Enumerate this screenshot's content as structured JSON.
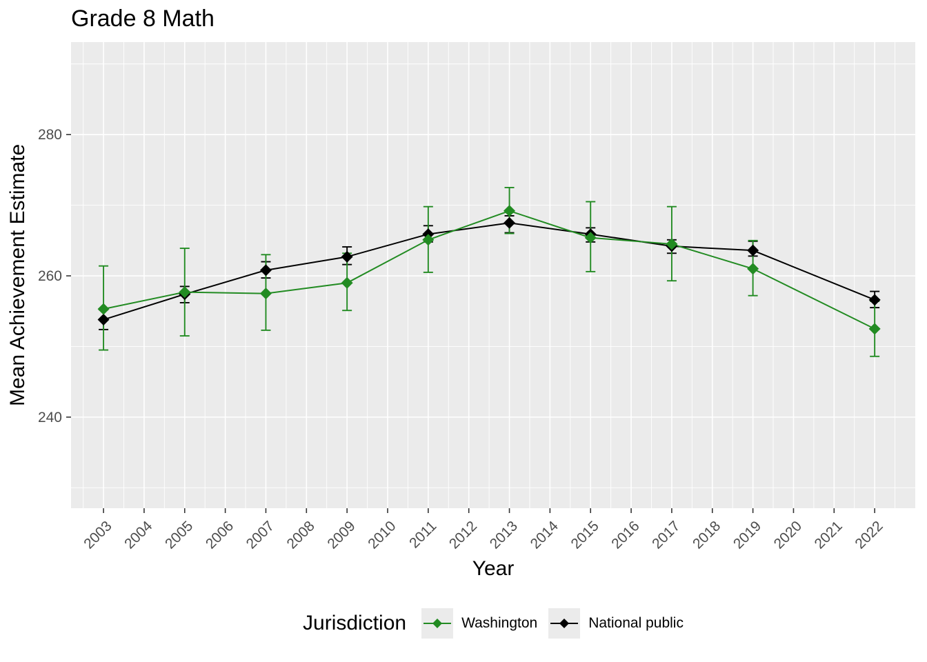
{
  "chart_data": {
    "type": "line",
    "title": "Grade 8 Math",
    "xlabel": "Year",
    "ylabel": "Mean Achievement Estimate",
    "legend_title": "Jurisdiction",
    "legend_position": "bottom",
    "grid": true,
    "x_ticks": [
      2003,
      2004,
      2005,
      2006,
      2007,
      2008,
      2009,
      2010,
      2011,
      2012,
      2013,
      2014,
      2015,
      2016,
      2017,
      2018,
      2019,
      2020,
      2021,
      2022
    ],
    "y_ticks": [
      240,
      260,
      280
    ],
    "y_minor_ticks": [
      230,
      250,
      270,
      290
    ],
    "x_domain": [
      2002.2,
      2023.0
    ],
    "y_domain": [
      227.1,
      293.1
    ],
    "x": [
      2003,
      2005,
      2007,
      2009,
      2011,
      2013,
      2015,
      2017,
      2019,
      2022
    ],
    "series": [
      {
        "name": "Washington",
        "color": "#228B22",
        "values": [
          255.3,
          257.7,
          257.5,
          259.0,
          265.1,
          269.2,
          265.4,
          264.5,
          261.0,
          252.5
        ],
        "ci_low": [
          249.5,
          251.5,
          252.3,
          255.1,
          260.5,
          266.0,
          260.6,
          259.3,
          257.2,
          248.6
        ],
        "ci_high": [
          261.4,
          263.9,
          263.0,
          263.2,
          269.8,
          272.5,
          270.5,
          269.8,
          265.0,
          256.4
        ]
      },
      {
        "name": "National public",
        "color": "#000000",
        "values": [
          253.8,
          257.4,
          260.8,
          262.7,
          265.9,
          267.5,
          265.9,
          264.2,
          263.6,
          256.6
        ],
        "ci_low": [
          252.4,
          256.2,
          259.7,
          261.6,
          264.8,
          266.1,
          264.8,
          263.2,
          262.8,
          255.5
        ],
        "ci_high": [
          255.2,
          258.5,
          262.0,
          264.1,
          267.1,
          268.5,
          266.8,
          265.1,
          264.9,
          257.8
        ]
      }
    ],
    "panel_background": "#EBEBEB",
    "gridline_color": "#FFFFFF",
    "tick_color": "#333333",
    "tick_label_color": "#4D4D4D"
  }
}
